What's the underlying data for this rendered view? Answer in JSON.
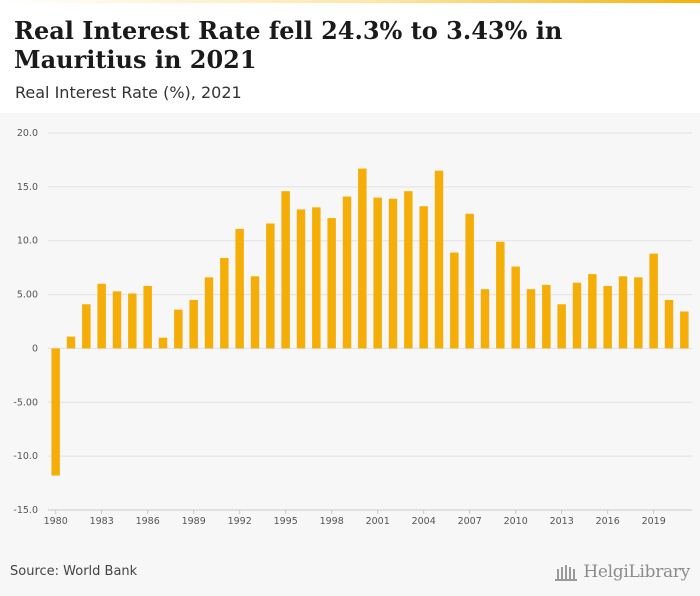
{
  "header": {
    "title": "Real Interest Rate fell 24.3% to 3.43% in Mauritius in 2021",
    "subtitle": "Real Interest Rate (%), 2021"
  },
  "footer": {
    "source": "Source: World Bank",
    "logo_text": "HelgiLibrary"
  },
  "chart_data": {
    "type": "bar",
    "title": "Real Interest Rate fell 24.3% to 3.43% in Mauritius in 2021",
    "subtitle": "Real Interest Rate (%), 2021",
    "xlabel": "",
    "ylabel": "",
    "ylim": [
      -15,
      20
    ],
    "yticks": [
      20,
      15,
      10,
      5,
      0,
      -5,
      -10,
      -15
    ],
    "ytick_labels": [
      "20.0",
      "15.0",
      "10.0",
      "5.00",
      "0",
      "-5.00",
      "-10.0",
      "-15.0"
    ],
    "xtick_labels": [
      "1980",
      "1983",
      "1986",
      "1989",
      "1992",
      "1995",
      "1998",
      "2001",
      "2004",
      "2007",
      "2010",
      "2013",
      "2016",
      "2019"
    ],
    "categories": [
      "1980",
      "1981",
      "1982",
      "1983",
      "1984",
      "1985",
      "1986",
      "1987",
      "1988",
      "1989",
      "1990",
      "1991",
      "1992",
      "1993",
      "1994",
      "1995",
      "1996",
      "1997",
      "1998",
      "1999",
      "2000",
      "2001",
      "2002",
      "2003",
      "2004",
      "2005",
      "2006",
      "2007",
      "2008",
      "2009",
      "2010",
      "2011",
      "2012",
      "2013",
      "2014",
      "2015",
      "2016",
      "2017",
      "2018",
      "2019",
      "2020",
      "2021"
    ],
    "values": [
      -11.8,
      1.1,
      4.1,
      6.0,
      5.3,
      5.1,
      5.8,
      1.0,
      3.6,
      4.5,
      6.6,
      8.4,
      11.1,
      6.7,
      11.6,
      14.6,
      12.9,
      13.1,
      12.1,
      14.1,
      16.7,
      14.0,
      13.9,
      14.6,
      13.2,
      16.5,
      8.9,
      12.5,
      5.5,
      9.9,
      7.6,
      5.5,
      5.9,
      4.1,
      6.1,
      6.9,
      5.8,
      6.7,
      6.6,
      8.8,
      4.5,
      3.43
    ],
    "colors": {
      "bar": "#f5ae07",
      "grid": "#e2e2e2",
      "axis": "#c8c8c8"
    },
    "grid": true,
    "legend": "none"
  }
}
